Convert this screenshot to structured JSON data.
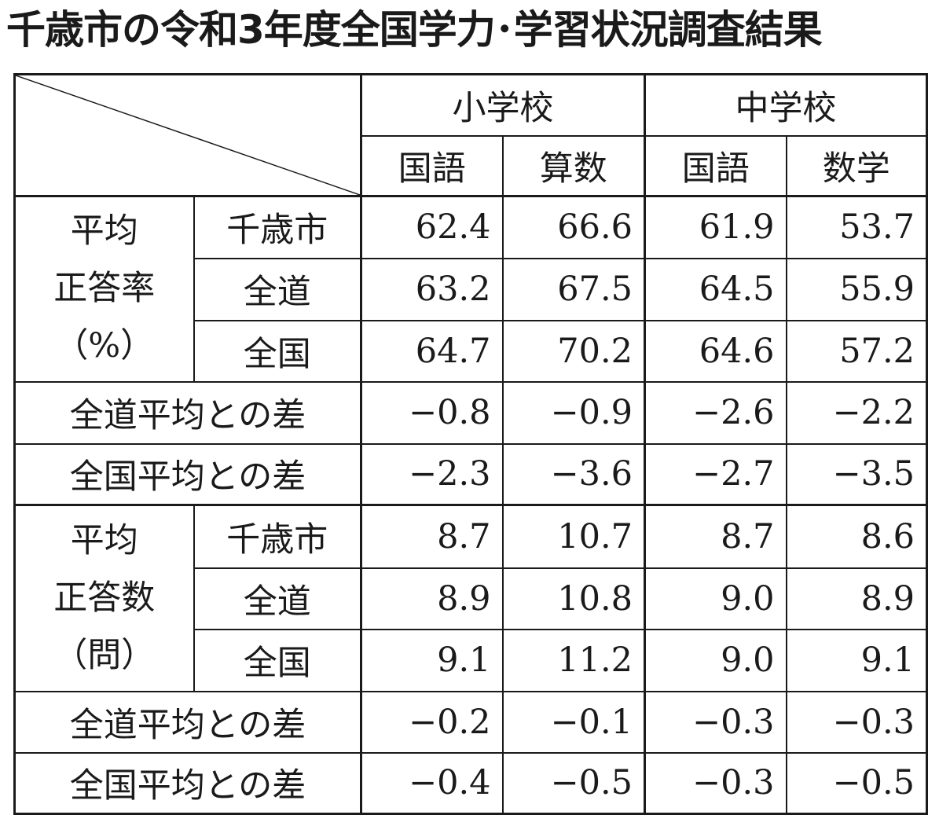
{
  "title": "千歳市の令和3年度全国学力･学習状況調査結果",
  "header": {
    "school_groups": [
      "小学校",
      "中学校"
    ],
    "subjects": [
      "国語",
      "算数",
      "国語",
      "数学"
    ]
  },
  "rate_block": {
    "group_label_lines": [
      "平均",
      "正答率",
      "（%）"
    ],
    "rows": [
      {
        "label": "千歳市",
        "values": [
          "62.4",
          "66.6",
          "61.9",
          "53.7"
        ]
      },
      {
        "label": "全道",
        "values": [
          "63.2",
          "67.5",
          "64.5",
          "55.9"
        ]
      },
      {
        "label": "全国",
        "values": [
          "64.7",
          "70.2",
          "64.6",
          "57.2"
        ]
      }
    ],
    "diffs": [
      {
        "label": "全道平均との差",
        "values": [
          "−0.8",
          "−0.9",
          "−2.6",
          "−2.2"
        ]
      },
      {
        "label": "全国平均との差",
        "values": [
          "−2.3",
          "−3.6",
          "−2.7",
          "−3.5"
        ]
      }
    ]
  },
  "count_block": {
    "group_label_lines": [
      "平均",
      "正答数",
      "（問）"
    ],
    "rows": [
      {
        "label": "千歳市",
        "values": [
          "8.7",
          "10.7",
          "8.7",
          "8.6"
        ]
      },
      {
        "label": "全道",
        "values": [
          "8.9",
          "10.8",
          "9.0",
          "8.9"
        ]
      },
      {
        "label": "全国",
        "values": [
          "9.1",
          "11.2",
          "9.0",
          "9.1"
        ]
      }
    ],
    "diffs": [
      {
        "label": "全道平均との差",
        "values": [
          "−0.2",
          "−0.1",
          "−0.3",
          "−0.3"
        ]
      },
      {
        "label": "全国平均との差",
        "values": [
          "−0.4",
          "−0.5",
          "−0.3",
          "−0.5"
        ]
      }
    ]
  }
}
